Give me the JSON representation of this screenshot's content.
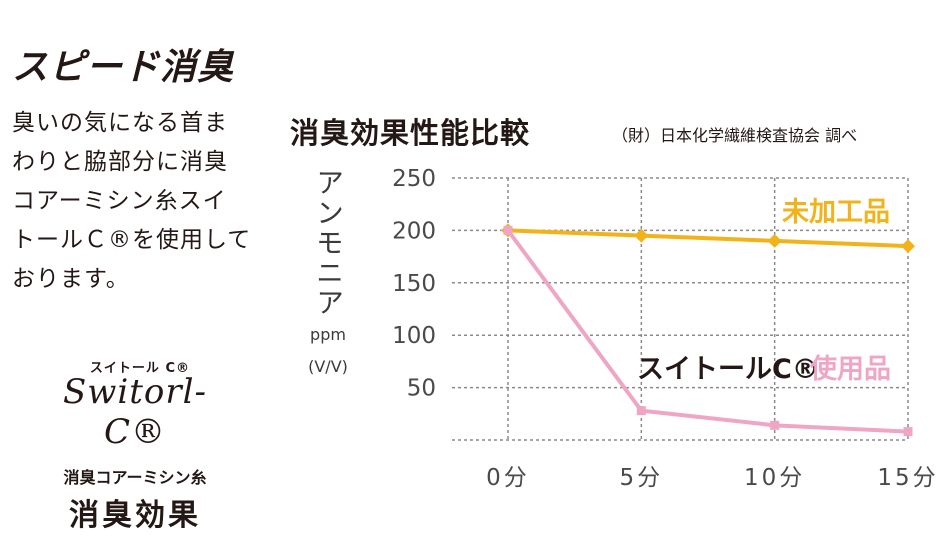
{
  "heading": "スピード消臭",
  "description": [
    "臭いの気になる首ま",
    "わりと脇部分に消臭",
    "コアーミシン糸スイ",
    "トールＣ®を使用して",
    "おります。"
  ],
  "logo": {
    "small": "スイトール C®",
    "script": "Switorl-C®",
    "caption": "消臭コアーミシン糸",
    "big": "消臭効果"
  },
  "chart_data": {
    "type": "line",
    "title": "消臭効果性能比較",
    "source": "（財）日本化学繊維検査協会 調べ",
    "ylabel": "アンモニア",
    "yunit_line1": "ppm",
    "yunit_line2": "(V/V)",
    "ylim": [
      0,
      250
    ],
    "yticks": [
      {
        "value": 250,
        "label": "250"
      },
      {
        "value": 200,
        "label": "200"
      },
      {
        "value": 150,
        "label": "150"
      },
      {
        "value": 100,
        "label": "100"
      },
      {
        "value": 50,
        "label": "50"
      }
    ],
    "x": [
      0,
      5,
      10,
      15
    ],
    "xticks": [
      "0分",
      "5分",
      "10分",
      "15分"
    ],
    "grid": true,
    "series": [
      {
        "name": "未加工品",
        "values": [
          200,
          195,
          190,
          185
        ],
        "color": "#f2b31a",
        "marker": "diamond"
      },
      {
        "name": "使用品",
        "prefix": "スイトールC®",
        "values": [
          200,
          28,
          14,
          8
        ],
        "color": "#eea6c4",
        "marker": "square"
      }
    ]
  }
}
